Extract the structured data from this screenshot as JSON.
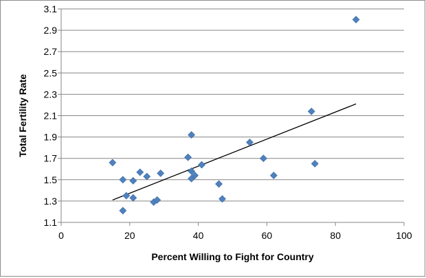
{
  "chart_data": {
    "type": "scatter",
    "title": "",
    "xlabel": "Percent Willing to Fight for Country",
    "ylabel": "Total Fertility Rate",
    "xlim": [
      0,
      100
    ],
    "ylim": [
      1.1,
      3.1
    ],
    "xticks": [
      0,
      20,
      40,
      60,
      80,
      100
    ],
    "yticks": [
      1.1,
      1.3,
      1.5,
      1.7,
      1.9,
      2.1,
      2.3,
      2.5,
      2.7,
      2.9,
      3.1
    ],
    "grid": "horizontal",
    "legend": "none",
    "marker_color": "#4f81bd",
    "trendline_color": "#000000",
    "points": [
      {
        "x": 15,
        "y": 1.66
      },
      {
        "x": 18,
        "y": 1.5
      },
      {
        "x": 18,
        "y": 1.21
      },
      {
        "x": 19,
        "y": 1.35
      },
      {
        "x": 21,
        "y": 1.49
      },
      {
        "x": 21,
        "y": 1.33
      },
      {
        "x": 23,
        "y": 1.57
      },
      {
        "x": 25,
        "y": 1.53
      },
      {
        "x": 27,
        "y": 1.29
      },
      {
        "x": 28,
        "y": 1.31
      },
      {
        "x": 29,
        "y": 1.56
      },
      {
        "x": 37,
        "y": 1.71
      },
      {
        "x": 38,
        "y": 1.92
      },
      {
        "x": 38,
        "y": 1.58
      },
      {
        "x": 38,
        "y": 1.51
      },
      {
        "x": 39,
        "y": 1.54
      },
      {
        "x": 41,
        "y": 1.64
      },
      {
        "x": 46,
        "y": 1.46
      },
      {
        "x": 47,
        "y": 1.32
      },
      {
        "x": 55,
        "y": 1.85
      },
      {
        "x": 59,
        "y": 1.7
      },
      {
        "x": 62,
        "y": 1.54
      },
      {
        "x": 73,
        "y": 2.14
      },
      {
        "x": 74,
        "y": 1.65
      },
      {
        "x": 86,
        "y": 3.0
      }
    ],
    "trendline": {
      "x": [
        15,
        86
      ],
      "y": [
        1.31,
        2.21
      ]
    }
  }
}
